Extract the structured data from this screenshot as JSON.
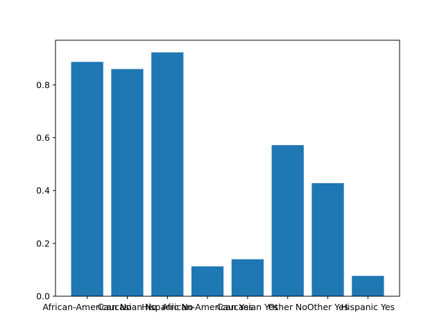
{
  "chart_data": {
    "type": "bar",
    "title": "",
    "xlabel": "",
    "ylabel": "",
    "categories": [
      "African-American No",
      "Caucasian No",
      "Hispanic No",
      "African-American Yes",
      "Caucasian Yes",
      "Other No",
      "Other Yes",
      "Hispanic Yes"
    ],
    "values": [
      0.887,
      0.86,
      0.923,
      0.113,
      0.14,
      0.572,
      0.428,
      0.077
    ],
    "ylim": [
      0,
      0.969
    ],
    "yticks": [
      0.0,
      0.2,
      0.4,
      0.6,
      0.8
    ],
    "ytick_labels": [
      "0.0",
      "0.2",
      "0.4",
      "0.6",
      "0.8"
    ],
    "bar_color": "#1f77b4",
    "grid": false,
    "legend": "none"
  }
}
